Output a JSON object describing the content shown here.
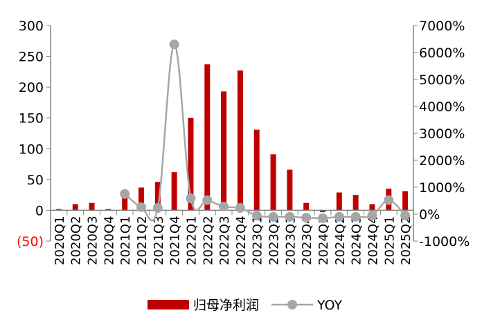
{
  "chart_data": {
    "type": "bar",
    "categories": [
      "2020Q1",
      "2020Q2",
      "2020Q3",
      "2020Q4",
      "2021Q1",
      "2021Q2",
      "2021Q3",
      "2021Q4",
      "2022Q1",
      "2022Q2",
      "2022Q3",
      "2022Q4",
      "2023Q1",
      "2023Q2",
      "2023Q3",
      "2023Q4",
      "2024Q1",
      "2024Q2",
      "2024Q3",
      "2024Q4",
      "2025Q1",
      "2025Q2"
    ],
    "series": [
      {
        "name": "归母净利润",
        "type": "bar",
        "axis": "left",
        "color": "#C00000",
        "values": [
          2,
          10,
          12,
          2,
          22,
          37,
          46,
          62,
          150,
          237,
          193,
          227,
          131,
          91,
          66,
          12,
          -3,
          29,
          25,
          10,
          35,
          31
        ]
      },
      {
        "name": "YOY",
        "type": "line",
        "axis": "right",
        "color": "#A6A6A6",
        "values": [
          null,
          null,
          null,
          null,
          750,
          260,
          230,
          6300,
          590,
          520,
          280,
          230,
          -50,
          -100,
          -100,
          -130,
          -150,
          -100,
          -100,
          -50,
          520,
          -50
        ]
      }
    ],
    "left_axis": {
      "ylim": [
        -50,
        300
      ],
      "ticks": [
        300,
        250,
        200,
        150,
        100,
        50,
        0,
        -50
      ],
      "tick_labels": [
        "300",
        "250",
        "200",
        "150",
        "100",
        "50",
        "0",
        "(50)"
      ],
      "negative_color": "#FF0000"
    },
    "right_axis": {
      "ylim": [
        -1000,
        7000
      ],
      "ticks": [
        7000,
        6000,
        5000,
        4000,
        3000,
        2000,
        1000,
        0,
        -1000
      ],
      "tick_labels": [
        "7000%",
        "6000%",
        "5000%",
        "4000%",
        "3000%",
        "2000%",
        "1000%",
        "0%",
        "-1000%"
      ]
    },
    "legend": {
      "placement": "bottom",
      "entries": [
        "归母净利润",
        "YOY"
      ]
    },
    "grid": false
  }
}
